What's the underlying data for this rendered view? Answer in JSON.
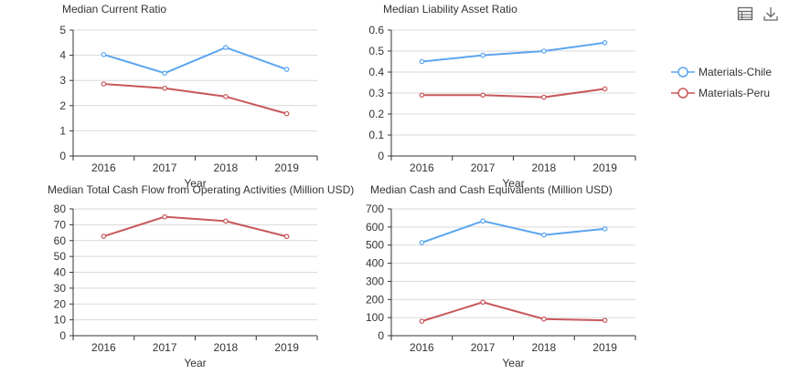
{
  "colors": {
    "chile": "#5ba5f0",
    "peru": "#c8575a",
    "grid": "#d9d9d9",
    "axis": "#333333"
  },
  "toolbox": {
    "data_view": "table-icon",
    "save": "download-icon"
  },
  "legend": {
    "position": "right",
    "items": [
      "Materials-Chile",
      "Materials-Peru"
    ]
  },
  "chart_data": [
    {
      "type": "line",
      "title": "Median Current Ratio",
      "xlabel": "Year",
      "ylabel": "",
      "categories": [
        "2016",
        "2017",
        "2018",
        "2019"
      ],
      "ylim": [
        0,
        5
      ],
      "yticks": [
        "0",
        "1",
        "2",
        "3",
        "4",
        "5"
      ],
      "grid": true,
      "series": [
        {
          "name": "Materials-Chile",
          "values": [
            4.03,
            3.29,
            4.31,
            3.44
          ]
        },
        {
          "name": "Materials-Peru",
          "values": [
            2.86,
            2.69,
            2.36,
            1.68
          ]
        }
      ]
    },
    {
      "type": "line",
      "title": "Median Liability Asset Ratio",
      "xlabel": "Year",
      "ylabel": "",
      "categories": [
        "2016",
        "2017",
        "2018",
        "2019"
      ],
      "ylim": [
        0,
        0.6
      ],
      "yticks": [
        "0",
        "0.1",
        "0.2",
        "0.3",
        "0.4",
        "0.5",
        "0.6"
      ],
      "grid": true,
      "series": [
        {
          "name": "Materials-Chile",
          "values": [
            0.45,
            0.48,
            0.5,
            0.54
          ]
        },
        {
          "name": "Materials-Peru",
          "values": [
            0.29,
            0.29,
            0.28,
            0.32
          ]
        }
      ]
    },
    {
      "type": "line",
      "title": "Median Total Cash Flow from Operating Activities (Million USD)",
      "xlabel": "Year",
      "ylabel": "",
      "categories": [
        "2016",
        "2017",
        "2018",
        "2019"
      ],
      "ylim": [
        0,
        80
      ],
      "yticks": [
        "0",
        "10",
        "20",
        "30",
        "40",
        "50",
        "60",
        "70",
        "80"
      ],
      "grid": true,
      "series": [
        {
          "name": "Materials-Peru",
          "values": [
            62.7,
            75.0,
            72.3,
            62.6
          ]
        }
      ]
    },
    {
      "type": "line",
      "title": "Median Cash and Cash Equivalents (Million USD)",
      "xlabel": "Year",
      "ylabel": "",
      "categories": [
        "2016",
        "2017",
        "2018",
        "2019"
      ],
      "ylim": [
        0,
        700
      ],
      "yticks": [
        "0",
        "100",
        "200",
        "300",
        "400",
        "500",
        "600",
        "700"
      ],
      "grid": true,
      "series": [
        {
          "name": "Materials-Chile",
          "values": [
            514,
            633,
            556,
            590
          ]
        },
        {
          "name": "Materials-Peru",
          "values": [
            80,
            185,
            92,
            85
          ]
        }
      ]
    }
  ]
}
